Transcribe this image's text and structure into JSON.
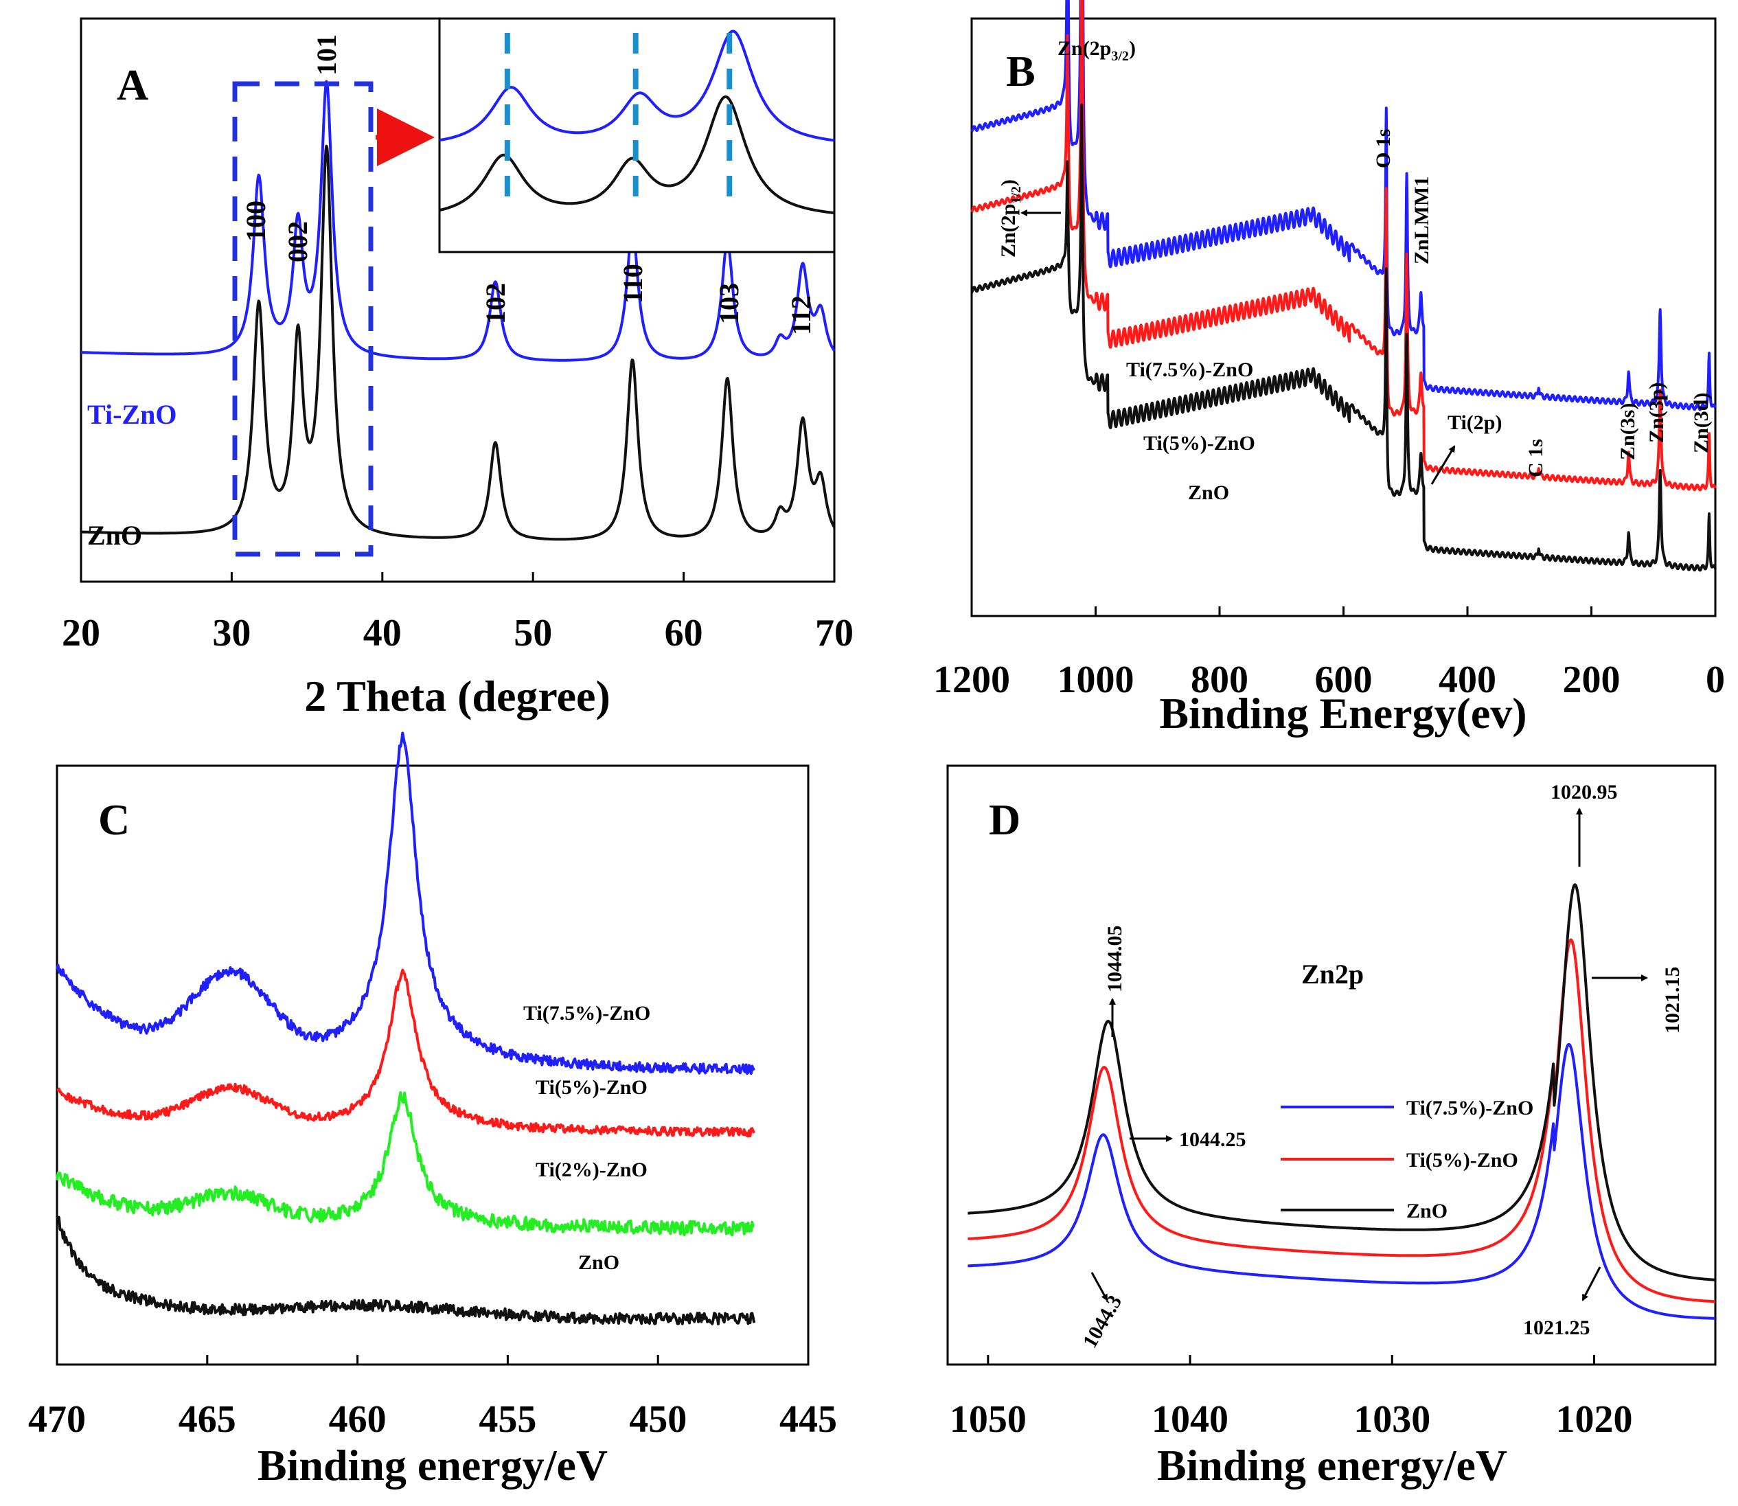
{
  "colors": {
    "blue": "#1f1fff",
    "red": "#ff1a1a",
    "black": "#111111",
    "green": "#22ee22",
    "dash_blue": "#2233dd",
    "marker": "#1a8fd0",
    "arrow_red": "#ee1111"
  },
  "chart_data": [
    {
      "panel": "A",
      "type": "line",
      "letter": "A",
      "xlabel": "2 Theta (degree)",
      "ylabel": "",
      "xlim": [
        20,
        70
      ],
      "xticks": [
        "20",
        "30",
        "40",
        "50",
        "60",
        "70"
      ],
      "series": [
        {
          "name": "Ti-ZnO",
          "color": "#1f1fff",
          "baseline": 0.42,
          "peaks": [
            [
              31.8,
              0.38,
              0.45
            ],
            [
              34.4,
              0.27,
              0.4
            ],
            [
              36.3,
              0.58,
              0.45
            ],
            [
              47.5,
              0.17,
              0.45
            ],
            [
              56.6,
              0.29,
              0.45
            ],
            [
              62.9,
              0.26,
              0.45
            ],
            [
              66.4,
              0.04,
              0.4
            ],
            [
              67.9,
              0.2,
              0.45
            ],
            [
              69.1,
              0.1,
              0.45
            ]
          ]
        },
        {
          "name": "ZnO",
          "color": "#111111",
          "baseline": 0.035,
          "peaks": [
            [
              31.8,
              0.49,
              0.45
            ],
            [
              34.4,
              0.4,
              0.4
            ],
            [
              36.3,
              0.82,
              0.45
            ],
            [
              47.5,
              0.21,
              0.45
            ],
            [
              56.6,
              0.39,
              0.45
            ],
            [
              62.9,
              0.35,
              0.45
            ],
            [
              66.4,
              0.05,
              0.4
            ],
            [
              67.9,
              0.25,
              0.45
            ],
            [
              69.1,
              0.12,
              0.45
            ]
          ]
        }
      ],
      "series_labels": [
        "Ti-ZnO",
        "ZnO"
      ],
      "peak_labels": [
        "100",
        "002",
        "101",
        "102",
        "110",
        "103",
        "112"
      ],
      "inset": {
        "description_peaks": [
          "100",
          "002",
          "101"
        ]
      }
    },
    {
      "panel": "B",
      "type": "line",
      "letter": "B",
      "xlabel": "Binding Energy(ev)",
      "xlim": [
        1200,
        0
      ],
      "xticks": [
        "1200",
        "1000",
        "800",
        "600",
        "400",
        "200",
        "0"
      ],
      "series": [
        {
          "name": "Ti(7.5%)-ZnO",
          "color": "#1f1fff",
          "offset": 0.3
        },
        {
          "name": "Ti(5%)-ZnO",
          "color": "#ff1a1a",
          "offset": 0.15
        },
        {
          "name": "ZnO",
          "color": "#111111",
          "offset": 0.0
        }
      ],
      "series_labels": [
        "Ti(7.5%)-ZnO",
        "Ti(5%)-ZnO",
        "ZnO"
      ],
      "peak_labels": {
        "zn2p32": "Zn(2p",
        "zn2p32_sub": "3/2",
        "zn2p12": "Zn(2p",
        "zn2p12_sub": "1/2",
        "o1s": "O 1s",
        "znlmm": "ZnLMM1",
        "ti2p": "Ti(2p)",
        "c1s": "C 1s",
        "zn3s": "Zn(3s)",
        "zn3p": "Zn(3p)",
        "zn3d": "Zn(3d)"
      }
    },
    {
      "panel": "C",
      "type": "line",
      "letter": "C",
      "xlabel": "Binding energy/eV",
      "xlim": [
        470,
        445
      ],
      "xticks": [
        "470",
        "465",
        "460",
        "455",
        "450",
        "445"
      ],
      "series": [
        {
          "name": "Ti(7.5%)-ZnO",
          "color": "#1f1fff"
        },
        {
          "name": "Ti(5%)-ZnO",
          "color": "#ff1a1a"
        },
        {
          "name": "Ti(2%)-ZnO",
          "color": "#22ee22"
        },
        {
          "name": "ZnO",
          "color": "#111111"
        }
      ],
      "series_labels": [
        "Ti(7.5%)-ZnO",
        "Ti(5%)-ZnO",
        "Ti(2%)-ZnO",
        "ZnO"
      ],
      "peaks_eV": [
        458.5,
        464.2
      ]
    },
    {
      "panel": "D",
      "type": "line",
      "letter": "D",
      "xlabel": "Binding energy/eV",
      "xlim": [
        1052,
        1014
      ],
      "xticks": [
        "1050",
        "1040",
        "1030",
        "1020"
      ],
      "inner_label": "Zn2p",
      "series": [
        {
          "name": "Ti(7.5%)-ZnO",
          "color": "#1f1fff",
          "peak1": 1044.3,
          "peak2": 1021.25
        },
        {
          "name": "Ti(5%)-ZnO",
          "color": "#ff1a1a",
          "peak1": 1044.25,
          "peak2": 1021.15
        },
        {
          "name": "ZnO",
          "color": "#111111",
          "peak1": 1044.05,
          "peak2": 1020.95
        }
      ],
      "legend": [
        "Ti(7.5%)-ZnO",
        "Ti(5%)-ZnO",
        "ZnO"
      ],
      "annotations": [
        "1020.95",
        "1021.15",
        "1021.25",
        "1044.05",
        "1044.25",
        "1044.3"
      ]
    }
  ]
}
